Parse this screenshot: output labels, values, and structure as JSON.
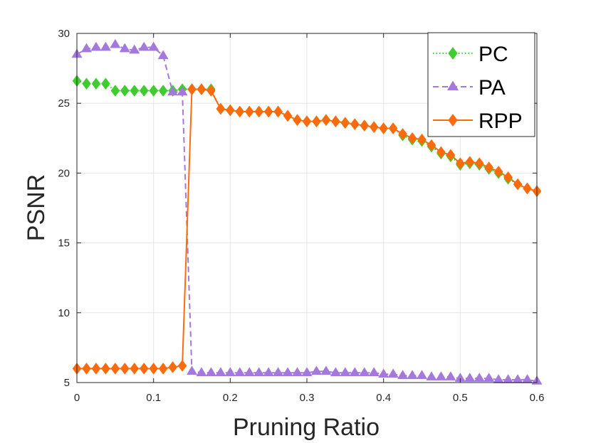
{
  "chart_data": {
    "type": "line",
    "title": "",
    "xlabel": "Pruning Ratio",
    "ylabel": "PSNR",
    "xlim": [
      0,
      0.6
    ],
    "ylim": [
      5,
      30
    ],
    "xticks": [
      0,
      0.1,
      0.2,
      0.3,
      0.4,
      0.5,
      0.6
    ],
    "yticks": [
      5,
      10,
      15,
      20,
      25,
      30
    ],
    "xtick_labels": [
      "0",
      "0.1",
      "0.2",
      "0.3",
      "0.4",
      "0.5",
      "0.6"
    ],
    "ytick_labels": [
      "5",
      "10",
      "15",
      "20",
      "25",
      "30"
    ],
    "grid": true,
    "legend_position": "top-right",
    "x": [
      0,
      0.0125,
      0.025,
      0.0375,
      0.05,
      0.0625,
      0.075,
      0.0875,
      0.1,
      0.1125,
      0.125,
      0.1375,
      0.15,
      0.1625,
      0.175,
      0.1875,
      0.2,
      0.2125,
      0.225,
      0.2375,
      0.25,
      0.2625,
      0.275,
      0.2875,
      0.3,
      0.3125,
      0.325,
      0.3375,
      0.35,
      0.3625,
      0.375,
      0.3875,
      0.4,
      0.4125,
      0.425,
      0.4375,
      0.45,
      0.4625,
      0.475,
      0.4875,
      0.5,
      0.5125,
      0.525,
      0.5375,
      0.55,
      0.5625,
      0.575,
      0.5875,
      0.6
    ],
    "series": [
      {
        "name": "PC",
        "color": "#3fcc2e",
        "line_style": "dotted",
        "marker": "diamond",
        "values": [
          26.6,
          26.4,
          26.4,
          26.4,
          25.9,
          25.9,
          25.9,
          25.9,
          25.9,
          25.9,
          25.9,
          26.0,
          26.0,
          26.0,
          26.0,
          24.6,
          24.5,
          24.4,
          24.4,
          24.4,
          24.4,
          24.4,
          24.1,
          23.8,
          23.7,
          23.7,
          23.8,
          23.7,
          23.6,
          23.5,
          23.4,
          23.3,
          23.2,
          23.2,
          22.7,
          22.4,
          22.3,
          21.9,
          21.4,
          21.2,
          20.6,
          20.7,
          20.6,
          20.3,
          20.0,
          19.6,
          19.2,
          18.9,
          18.7
        ]
      },
      {
        "name": "PA",
        "color": "#a478dc",
        "line_style": "dashed",
        "marker": "triangle",
        "values": [
          28.5,
          28.9,
          29.0,
          29.0,
          29.2,
          28.9,
          28.8,
          29.0,
          29.0,
          28.4,
          25.8,
          25.8,
          5.8,
          5.7,
          5.7,
          5.7,
          5.7,
          5.7,
          5.7,
          5.7,
          5.7,
          5.7,
          5.7,
          5.7,
          5.7,
          5.8,
          5.8,
          5.7,
          5.7,
          5.7,
          5.7,
          5.7,
          5.6,
          5.6,
          5.5,
          5.5,
          5.5,
          5.4,
          5.4,
          5.4,
          5.3,
          5.3,
          5.3,
          5.3,
          5.2,
          5.2,
          5.2,
          5.2,
          5.1
        ]
      },
      {
        "name": "RPP",
        "color": "#ff6a0d",
        "line_style": "solid",
        "marker": "diamond",
        "values": [
          6.0,
          6.0,
          6.0,
          6.0,
          6.0,
          6.0,
          6.0,
          6.0,
          6.0,
          6.0,
          6.1,
          6.2,
          26.0,
          26.0,
          25.9,
          24.6,
          24.5,
          24.4,
          24.4,
          24.4,
          24.4,
          24.4,
          24.1,
          23.8,
          23.7,
          23.7,
          23.8,
          23.7,
          23.6,
          23.5,
          23.4,
          23.3,
          23.2,
          23.2,
          22.8,
          22.5,
          22.4,
          22.0,
          21.5,
          21.3,
          20.7,
          20.8,
          20.7,
          20.4,
          20.1,
          19.7,
          19.2,
          18.9,
          18.7
        ]
      }
    ]
  }
}
